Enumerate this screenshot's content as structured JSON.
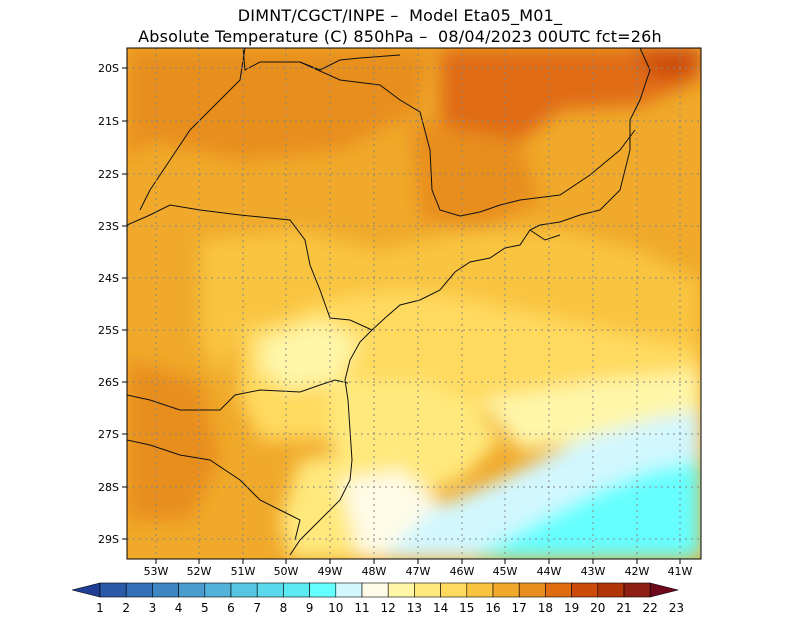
{
  "title": {
    "line1": "DIMNT/CGCT/INPE –  Model Eta05_M01_",
    "line2": "Absolute Temperature (C) 850hPa –  08/04/2023 00UTC fct=26h"
  },
  "axes": {
    "lat_labels": [
      "20S",
      "21S",
      "22S",
      "23S",
      "24S",
      "25S",
      "26S",
      "27S",
      "28S",
      "29S"
    ],
    "lon_labels": [
      "53W",
      "52W",
      "51W",
      "50W",
      "49W",
      "48W",
      "47W",
      "46W",
      "45W",
      "44W",
      "43W",
      "42W",
      "41W"
    ]
  },
  "colorbar": {
    "labels": [
      "1",
      "2",
      "3",
      "4",
      "5",
      "6",
      "7",
      "8",
      "9",
      "10",
      "11",
      "12",
      "13",
      "14",
      "15",
      "16",
      "17",
      "18",
      "19",
      "20",
      "21",
      "22",
      "23"
    ],
    "colors": [
      "#1f3f94",
      "#2a5aa8",
      "#3470b8",
      "#3e86c4",
      "#4a9ccf",
      "#52b2da",
      "#56c6e3",
      "#5ad9ec",
      "#5beaf2",
      "#66ffff",
      "#d2f7ff",
      "#fffbe6",
      "#fff6a8",
      "#ffe97d",
      "#ffda5e",
      "#f9c440",
      "#f0a92a",
      "#e88e1f",
      "#e06c12",
      "#cc4b0a",
      "#b23508",
      "#8e1f12",
      "#6e0a1c"
    ]
  },
  "grid": "dotted"
}
